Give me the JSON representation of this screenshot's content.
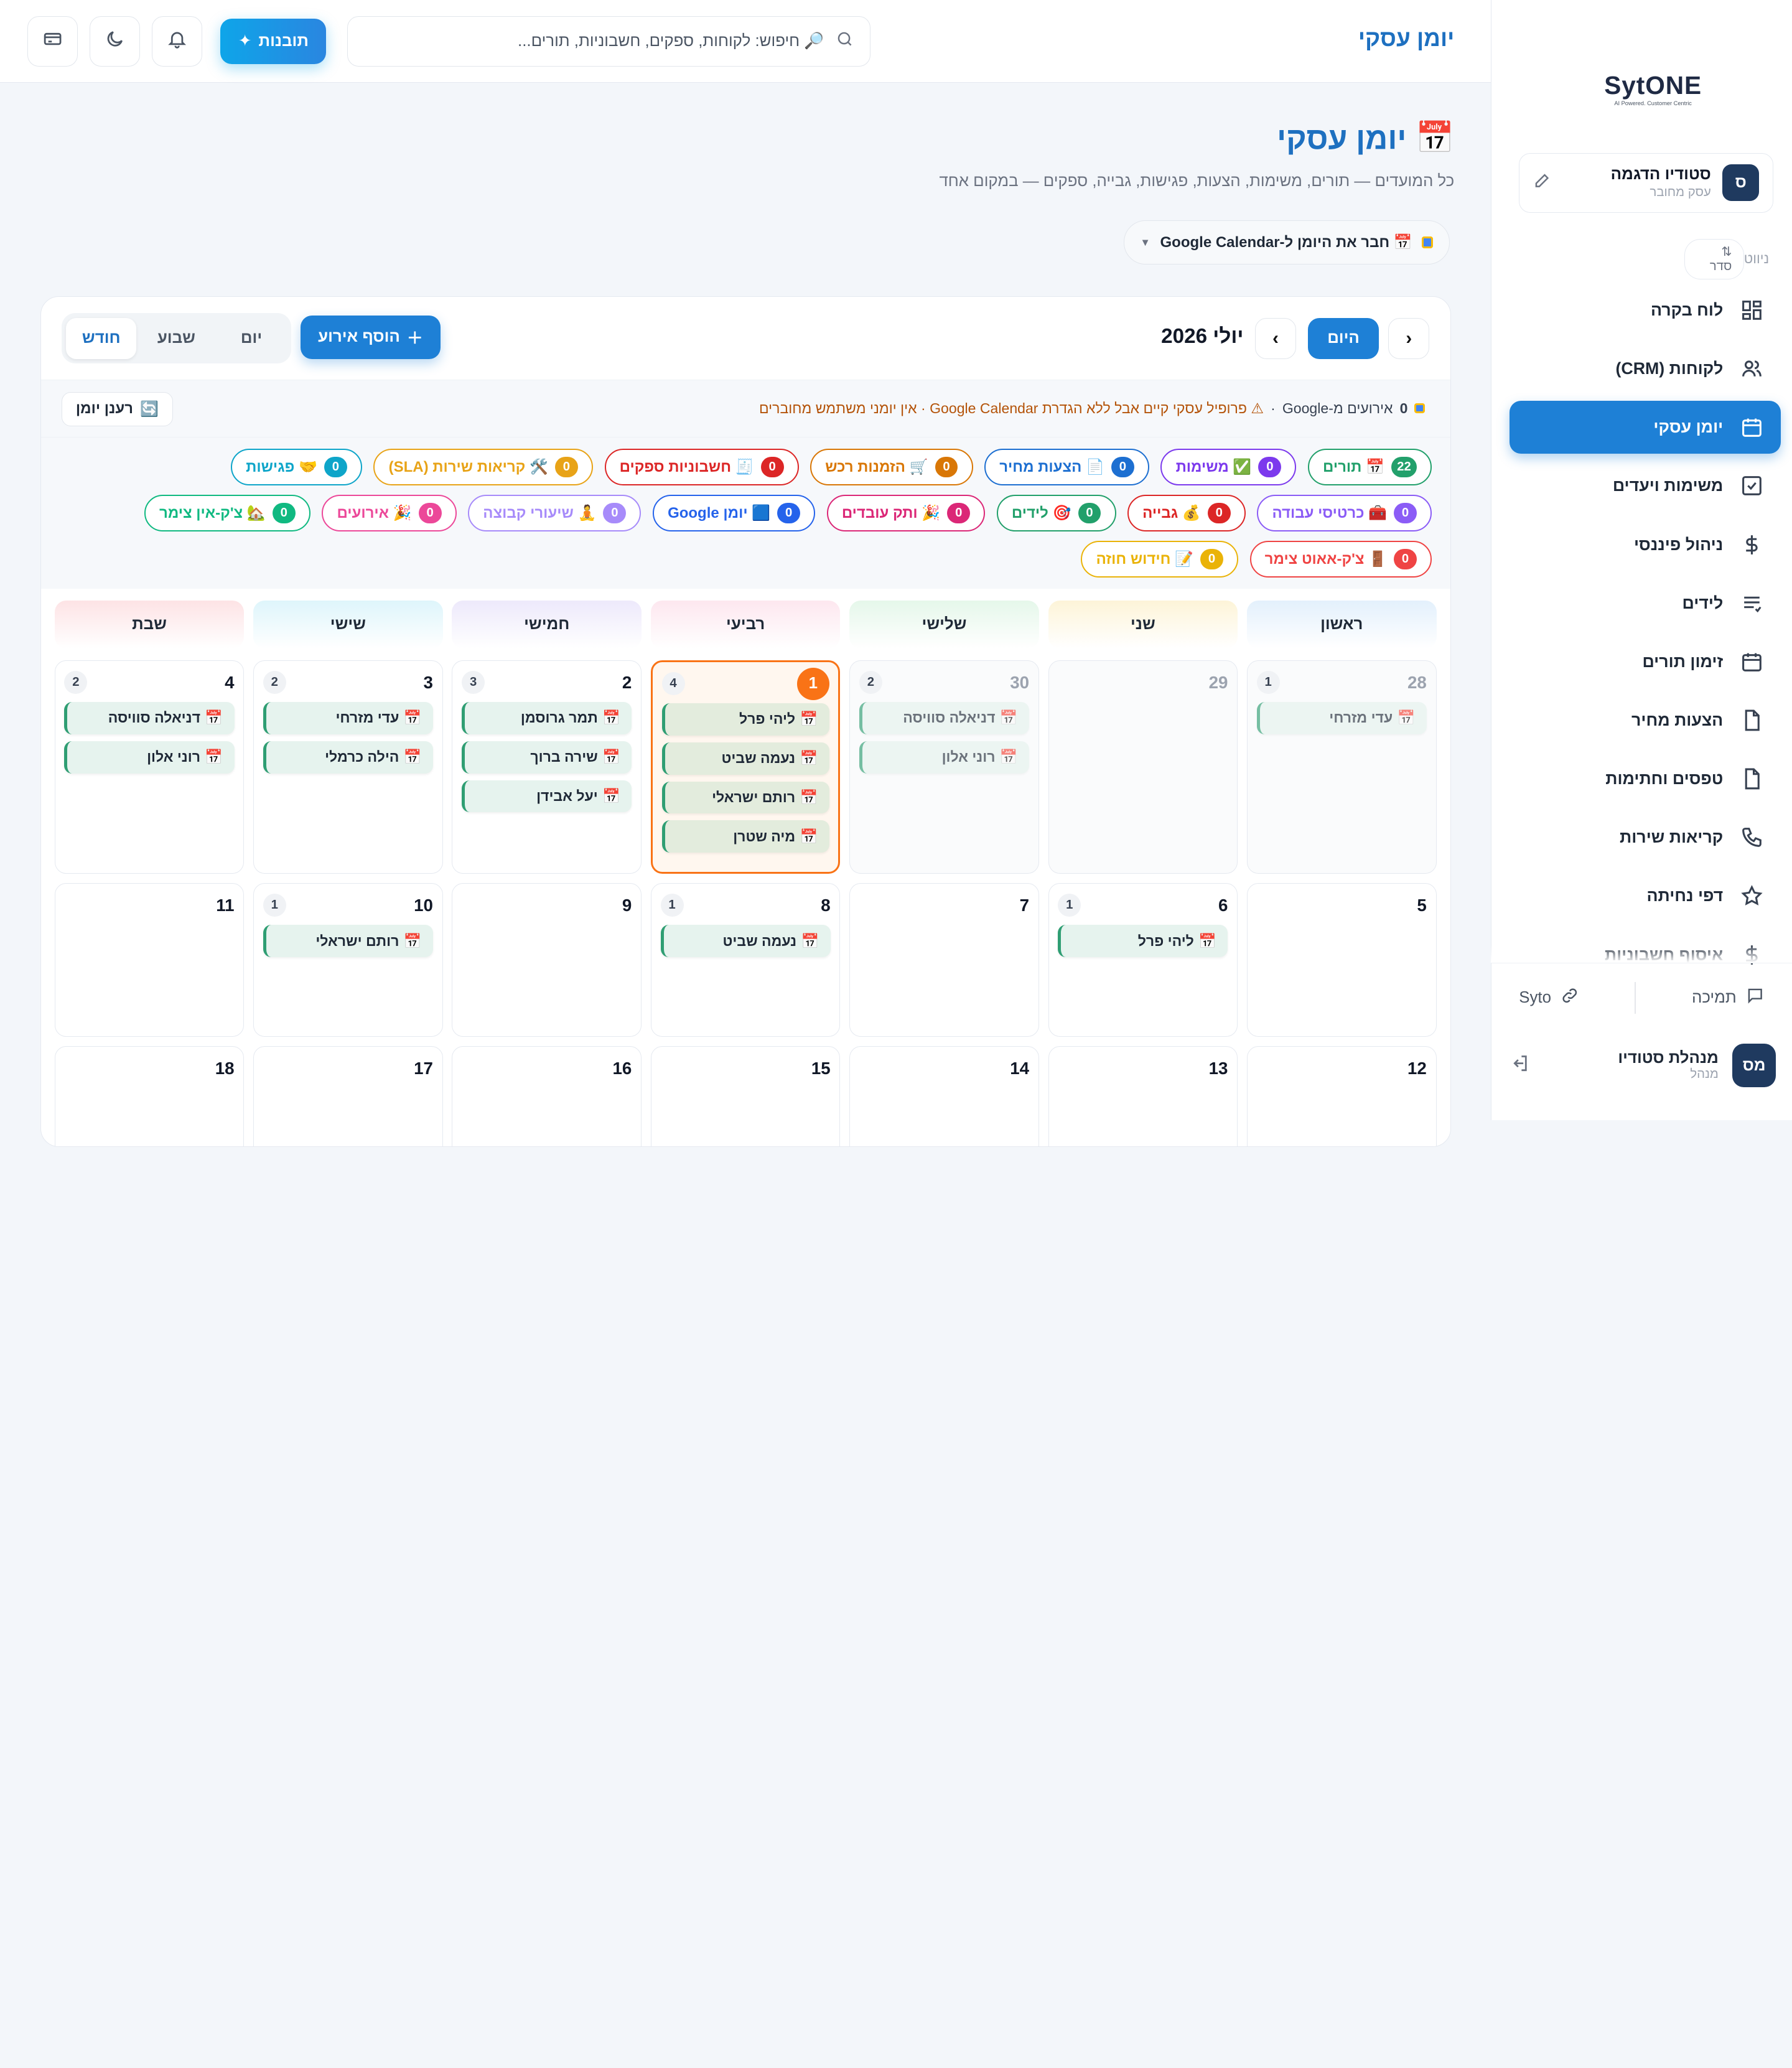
{
  "sidebar": {
    "logo_text": "SytONE",
    "logo_sub": "AI Powered. Customer Centric",
    "org": {
      "avatar": "ס",
      "name": "סטודיו הדגמה",
      "type": "עסק מחובר"
    },
    "nav_label": "ניווט",
    "sort_label": "סדר",
    "items": [
      {
        "label": "לוח בקרה",
        "icon": "dashboard-icon"
      },
      {
        "label": "לקוחות (CRM)",
        "icon": "users-icon"
      },
      {
        "label": "יומן עסקי",
        "icon": "calendar-icon",
        "active": true
      },
      {
        "label": "משימות ויעדים",
        "icon": "checkbox-icon"
      },
      {
        "label": "ניהול פיננסי",
        "icon": "dollar-icon"
      },
      {
        "label": "לידים",
        "icon": "list-icon"
      },
      {
        "label": "זימון תורים",
        "icon": "calendar-icon"
      },
      {
        "label": "הצעות מחיר",
        "icon": "document-icon"
      },
      {
        "label": "טפסים וחתימות",
        "icon": "document-icon"
      },
      {
        "label": "קריאות שירות",
        "icon": "phone-icon"
      },
      {
        "label": "דפי נחיתה",
        "icon": "star-icon"
      },
      {
        "label": "איסוף חשבוניות",
        "icon": "dollar-icon"
      }
    ],
    "support_label": "תמיכה",
    "syto_label": "Syto",
    "user": {
      "avatar": "מס",
      "name": "מנהלת סטודיו",
      "role": "מנהל"
    }
  },
  "topbar": {
    "title": "יומן עסקי",
    "search_placeholder": "🔎 חיפוש: לקוחות, ספקים, חשבוניות, תורים...",
    "insights_label": "תובנות"
  },
  "page": {
    "title": "יומן עסקי",
    "subtitle": "כל המועדים — תורים, משימות, הצעות, פגישות, גבייה, ספקים — במקום אחד",
    "gcal_connect": "📅 חבר את היומן ל-Google Calendar"
  },
  "calendar": {
    "month_label": "יולי 2026",
    "today_label": "היום",
    "add_event_label": "הוסף אירוע",
    "views": [
      "יום",
      "שבוע",
      "חודש"
    ],
    "active_view": "חודש",
    "status_count": "0",
    "status_text": "אירועים מ-Google",
    "status_warning": "⚠ פרופיל עסקי קיים אבל ללא הגדרת Google Calendar · אין יומני משתמש מחוברים",
    "refresh_label": "רענן יומן",
    "chips": [
      {
        "label": "📅 תורים",
        "count": "22",
        "color": "#22a06b"
      },
      {
        "label": "✅ משימות",
        "count": "0",
        "color": "#7c3aed"
      },
      {
        "label": "📄 הצעות מחיר",
        "count": "0",
        "color": "#1d6fd1"
      },
      {
        "label": "🛒 הזמנות רכש",
        "count": "0",
        "color": "#d97706"
      },
      {
        "label": "🧾 חשבוניות ספקים",
        "count": "0",
        "color": "#dc2626"
      },
      {
        "label": "🛠️ קריאות שירות (SLA)",
        "count": "0",
        "color": "#e8a317"
      },
      {
        "label": "🤝 פגישות",
        "count": "0",
        "color": "#0ea5c9"
      },
      {
        "label": "🧰 כרטיסי עבודה",
        "count": "0",
        "color": "#8b5cf6"
      },
      {
        "label": "💰 גבייה",
        "count": "0",
        "color": "#dc2626"
      },
      {
        "label": "🎯 לידים",
        "count": "0",
        "color": "#22a06b"
      },
      {
        "label": "🎉 ותק עובדים",
        "count": "0",
        "color": "#db2777"
      },
      {
        "label": "🟦 יומן Google",
        "count": "0",
        "color": "#2563eb"
      },
      {
        "label": "🧘 שיעורי קבוצה",
        "count": "0",
        "color": "#a78bfa"
      },
      {
        "label": "🎉 אירועים",
        "count": "0",
        "color": "#ec4899"
      },
      {
        "label": "🏡 צ'ק-אין צימר",
        "count": "0",
        "color": "#10b981"
      },
      {
        "label": "🚪 צ'ק-אאוט צימר",
        "count": "0",
        "color": "#ef4444"
      },
      {
        "label": "📝 חידוש חוזה",
        "count": "0",
        "color": "#eab308"
      }
    ],
    "days_of_week": [
      "ראשון",
      "שני",
      "שלישי",
      "רביעי",
      "חמישי",
      "שישי",
      "שבת"
    ],
    "dow_colors": [
      "#e3f0fc",
      "#fdf4d8",
      "#e5f7ea",
      "#fde7ef",
      "#ede9fb",
      "#def5fb",
      "#fde3e5"
    ],
    "weeks": [
      [
        {
          "num": "28",
          "out": true,
          "count": "1",
          "events": [
            "עדי מזרחי"
          ]
        },
        {
          "num": "29",
          "out": true,
          "count": "",
          "events": []
        },
        {
          "num": "30",
          "out": true,
          "count": "2",
          "events": [
            "דניאלה סוויסה",
            "רוני אלון"
          ]
        },
        {
          "num": "1",
          "today": true,
          "count": "4",
          "events": [
            "ליהי פרל",
            "נעמה שביט",
            "רותם ישראלי",
            "מיה שטרן"
          ]
        },
        {
          "num": "2",
          "count": "3",
          "events": [
            "תמר גרוסמן",
            "שירה ברוך",
            "יעל אבידן"
          ]
        },
        {
          "num": "3",
          "count": "2",
          "events": [
            "עדי מזרחי",
            "הילה כרמלי"
          ]
        },
        {
          "num": "4",
          "count": "2",
          "events": [
            "דניאלה סוויסה",
            "רוני אלון"
          ]
        }
      ],
      [
        {
          "num": "5",
          "count": "",
          "events": []
        },
        {
          "num": "6",
          "count": "1",
          "events": [
            "ליהי פרל"
          ]
        },
        {
          "num": "7",
          "count": "",
          "events": []
        },
        {
          "num": "8",
          "count": "1",
          "events": [
            "נעמה שביט"
          ]
        },
        {
          "num": "9",
          "count": "",
          "events": []
        },
        {
          "num": "10",
          "count": "1",
          "events": [
            "רותם ישראלי"
          ]
        },
        {
          "num": "11",
          "count": "",
          "events": []
        }
      ],
      [
        {
          "num": "12",
          "count": "",
          "events": []
        },
        {
          "num": "13",
          "count": "",
          "events": []
        },
        {
          "num": "14",
          "count": "",
          "events": []
        },
        {
          "num": "15",
          "count": "",
          "events": []
        },
        {
          "num": "16",
          "count": "",
          "events": []
        },
        {
          "num": "17",
          "count": "",
          "events": []
        },
        {
          "num": "18",
          "count": "",
          "events": []
        }
      ]
    ]
  }
}
